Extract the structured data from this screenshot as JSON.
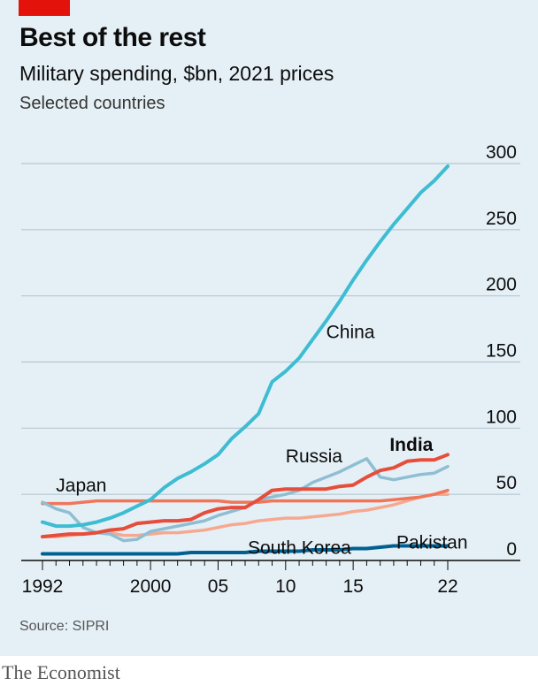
{
  "header": {
    "title": "Best of the rest",
    "subtitle": "Military spending, $bn, 2021 prices",
    "note": "Selected countries"
  },
  "footer": {
    "source": "Source: SIPRI",
    "brand": "The Economist"
  },
  "colors": {
    "background": "#e5f0f6",
    "brand_red": "#e3120b",
    "china": "#3ebcd2",
    "russia": "#8fbed3",
    "india": "#e64e3b",
    "japan": "#f0765a",
    "south_korea": "#f6a98f",
    "pakistan": "#006092",
    "gridline": "#b7c6cf"
  },
  "chart_data": {
    "type": "line",
    "x": [
      1992,
      1993,
      1994,
      1995,
      1996,
      1997,
      1998,
      1999,
      2000,
      2001,
      2002,
      2003,
      2004,
      2005,
      2006,
      2007,
      2008,
      2009,
      2010,
      2011,
      2012,
      2013,
      2014,
      2015,
      2016,
      2017,
      2018,
      2019,
      2020,
      2021,
      2022
    ],
    "xticks": [
      1992,
      2000,
      2005,
      2010,
      2015,
      2022
    ],
    "xtick_labels": [
      "1992",
      "2000",
      "05",
      "10",
      "15",
      "22"
    ],
    "yticks": [
      0,
      50,
      100,
      150,
      200,
      250,
      300
    ],
    "ylim": [
      0,
      300
    ],
    "grid": true,
    "series": [
      {
        "name": "China",
        "key": "china",
        "bold": false,
        "values": [
          29,
          26,
          26,
          27,
          29,
          32,
          36,
          41,
          46,
          55,
          62,
          67,
          73,
          80,
          92,
          101,
          111,
          135,
          143,
          153,
          167,
          181,
          196,
          212,
          227,
          241,
          254,
          266,
          278,
          287,
          298
        ]
      },
      {
        "name": "Russia",
        "key": "russia",
        "bold": false,
        "values": [
          44,
          39,
          36,
          25,
          21,
          20,
          15,
          16,
          22,
          24,
          26,
          28,
          30,
          34,
          37,
          40,
          46,
          48,
          50,
          53,
          59,
          63,
          67,
          72,
          77,
          63,
          61,
          63,
          65,
          66,
          71
        ]
      },
      {
        "name": "India",
        "key": "india",
        "bold": true,
        "values": [
          18,
          19,
          20,
          20,
          21,
          23,
          24,
          28,
          29,
          30,
          30,
          31,
          36,
          39,
          40,
          40,
          46,
          53,
          54,
          54,
          54,
          54,
          56,
          57,
          63,
          68,
          70,
          75,
          76,
          76,
          80
        ]
      },
      {
        "name": "Japan",
        "key": "japan",
        "bold": false,
        "values": [
          43,
          43,
          43,
          44,
          45,
          45,
          45,
          45,
          45,
          45,
          45,
          45,
          45,
          45,
          44,
          44,
          44,
          45,
          45,
          45,
          45,
          45,
          45,
          45,
          45,
          45,
          46,
          47,
          48,
          50,
          53
        ]
      },
      {
        "name": "South Korea",
        "key": "south_korea",
        "bold": false,
        "values": [
          18,
          18,
          19,
          20,
          21,
          21,
          19,
          19,
          20,
          21,
          21,
          22,
          23,
          25,
          27,
          28,
          30,
          31,
          32,
          32,
          33,
          34,
          35,
          37,
          38,
          40,
          42,
          45,
          48,
          50,
          50
        ]
      },
      {
        "name": "Pakistan",
        "key": "pakistan",
        "bold": false,
        "values": [
          5,
          5,
          5,
          5,
          5,
          5,
          5,
          5,
          5,
          5,
          5,
          6,
          6,
          6,
          6,
          6,
          7,
          7,
          7,
          7,
          8,
          8,
          8,
          9,
          9,
          10,
          11,
          11,
          11,
          11,
          11
        ]
      }
    ],
    "labels": [
      {
        "text": "China",
        "series": "china",
        "at": [
          2013.0,
          168
        ]
      },
      {
        "text": "Russia",
        "series": "russia",
        "at": [
          2010.0,
          74
        ]
      },
      {
        "text": "India",
        "series": "india",
        "at": [
          2017.7,
          83
        ]
      },
      {
        "text": "Japan",
        "series": "japan",
        "at": [
          1993.0,
          52
        ]
      },
      {
        "text": "South Korea",
        "series": "south_korea",
        "at": [
          2007.2,
          5
        ]
      },
      {
        "text": "Pakistan",
        "series": "pakistan",
        "at": [
          2018.2,
          9
        ]
      }
    ]
  }
}
